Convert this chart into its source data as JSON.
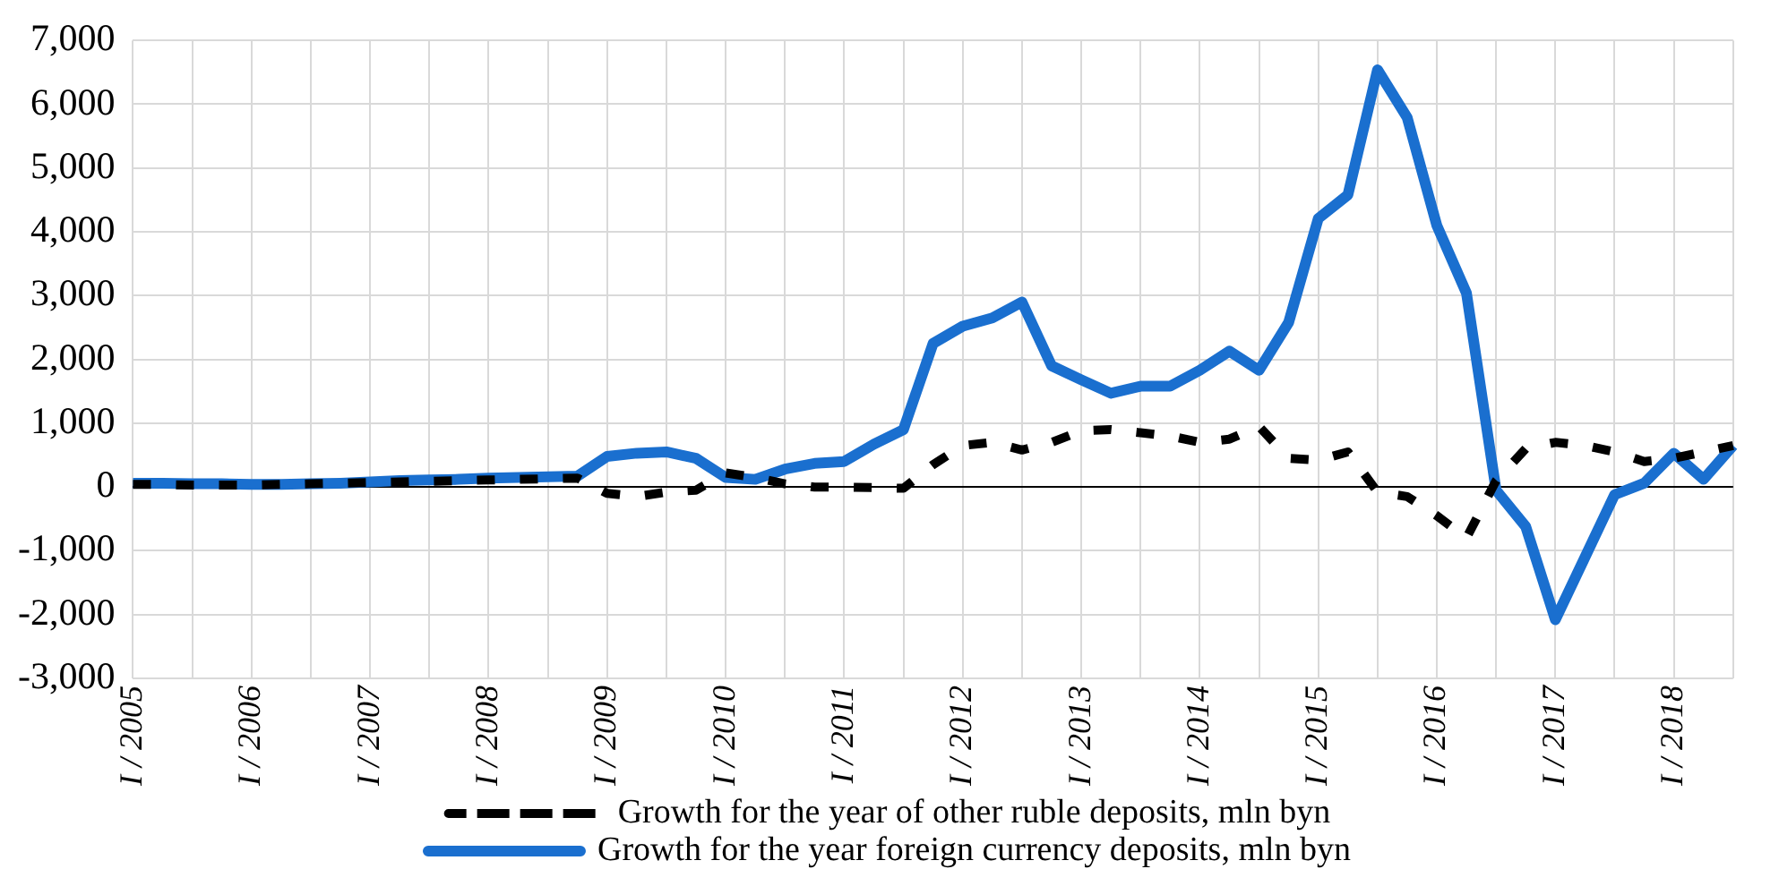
{
  "chart_data": {
    "type": "line",
    "categories": [
      "I / 2005",
      null,
      null,
      null,
      "I / 2006",
      null,
      null,
      null,
      "I / 2007",
      null,
      null,
      null,
      "I / 2008",
      null,
      null,
      null,
      "I / 2009",
      null,
      null,
      null,
      "I / 2010",
      null,
      null,
      null,
      "I / 2011",
      null,
      null,
      null,
      "I / 2012",
      null,
      null,
      null,
      "I / 2013",
      null,
      null,
      null,
      "I / 2014",
      null,
      null,
      null,
      "I / 2015",
      null,
      null,
      null,
      "I / 2016",
      null,
      null,
      null,
      "I / 2017",
      null,
      null,
      null,
      "I / 2018",
      null,
      null
    ],
    "series": [
      {
        "name": "Growth for the year of other ruble deposits, mln byn",
        "color": "#000000",
        "line_style": "dashed",
        "values": [
          40,
          40,
          30,
          30,
          30,
          40,
          50,
          60,
          70,
          80,
          90,
          100,
          110,
          120,
          130,
          140,
          -100,
          -150,
          -80,
          -50,
          220,
          150,
          50,
          0,
          0,
          -10,
          -20,
          350,
          650,
          700,
          580,
          700,
          880,
          900,
          850,
          800,
          700,
          750,
          950,
          450,
          420,
          550,
          -80,
          -150,
          -450,
          -800,
          100,
          600,
          700,
          650,
          550,
          400,
          450,
          550,
          650
        ]
      },
      {
        "name": "Growth for the year foreign currency deposits, mln byn",
        "color": "#1a6fcf",
        "line_style": "solid",
        "values": [
          60,
          60,
          50,
          50,
          40,
          40,
          50,
          60,
          80,
          100,
          110,
          120,
          140,
          150,
          160,
          170,
          480,
          530,
          550,
          450,
          150,
          120,
          280,
          370,
          400,
          670,
          900,
          2250,
          2520,
          2650,
          2900,
          1900,
          1680,
          1470,
          1580,
          1580,
          1830,
          2130,
          1830,
          2580,
          4210,
          4580,
          6540,
          5790,
          4100,
          3040,
          -50,
          -620,
          -2080,
          -1100,
          -120,
          60,
          530,
          120,
          650
        ]
      }
    ],
    "ylim": [
      -3000,
      7000
    ],
    "yticks": [
      {
        "value": -3000,
        "label": "-3,000"
      },
      {
        "value": -2000,
        "label": "-2,000"
      },
      {
        "value": -1000,
        "label": "-1,000"
      },
      0,
      {
        "value": 1000,
        "label": "1,000"
      },
      {
        "value": 2000,
        "label": "2,000"
      },
      {
        "value": 3000,
        "label": "3,000"
      },
      {
        "value": 4000,
        "label": "4,000"
      },
      {
        "value": 5000,
        "label": "5,000"
      },
      {
        "value": 6000,
        "label": "6,000"
      },
      {
        "value": 7000,
        "label": "7,000"
      }
    ],
    "grid": true,
    "legend": "bottom",
    "marker": "none"
  }
}
